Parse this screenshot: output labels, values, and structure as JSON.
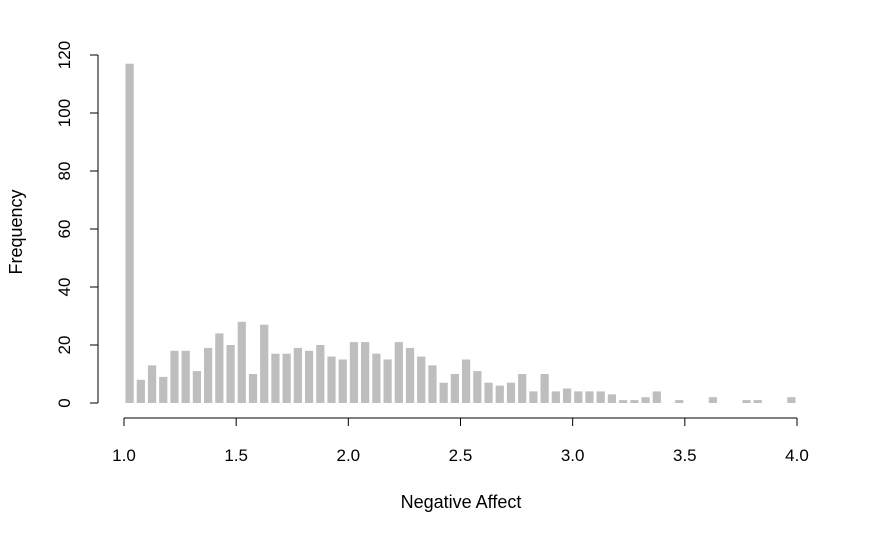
{
  "chart_data": {
    "type": "bar",
    "title": "",
    "xlabel": "Negative Affect",
    "ylabel": "Frequency",
    "xlim": [
      1.0,
      4.0
    ],
    "ylim": [
      0,
      120
    ],
    "bin_width": 0.05,
    "bar_color": "#bebebe",
    "grid": false,
    "legend": "none",
    "x_ticks": [
      "1.0",
      "1.5",
      "2.0",
      "2.5",
      "3.0",
      "3.5",
      "4.0"
    ],
    "y_ticks": [
      "0",
      "20",
      "40",
      "60",
      "80",
      "100",
      "120"
    ],
    "series": [
      {
        "bins_start": [
          1.0,
          1.05,
          1.1,
          1.15,
          1.2,
          1.25,
          1.3,
          1.35,
          1.4,
          1.45,
          1.5,
          1.55,
          1.6,
          1.65,
          1.7,
          1.75,
          1.8,
          1.85,
          1.9,
          1.95,
          2.0,
          2.05,
          2.1,
          2.15,
          2.2,
          2.25,
          2.3,
          2.35,
          2.4,
          2.45,
          2.5,
          2.55,
          2.6,
          2.65,
          2.7,
          2.75,
          2.8,
          2.85,
          2.9,
          2.95,
          3.0,
          3.05,
          3.1,
          3.15,
          3.2,
          3.25,
          3.3,
          3.35,
          3.4,
          3.45,
          3.5,
          3.55,
          3.6,
          3.65,
          3.7,
          3.75,
          3.8,
          3.85,
          3.9,
          3.95
        ],
        "values": [
          117,
          8,
          13,
          9,
          18,
          18,
          11,
          19,
          24,
          20,
          28,
          10,
          27,
          17,
          17,
          19,
          18,
          20,
          16,
          15,
          21,
          21,
          17,
          15,
          21,
          19,
          16,
          13,
          7,
          10,
          15,
          11,
          7,
          6,
          7,
          10,
          4,
          10,
          4,
          5,
          4,
          4,
          4,
          3,
          1,
          1,
          2,
          4,
          0,
          1,
          0,
          0,
          2,
          0,
          0,
          1,
          1,
          0,
          0,
          2
        ]
      }
    ]
  }
}
